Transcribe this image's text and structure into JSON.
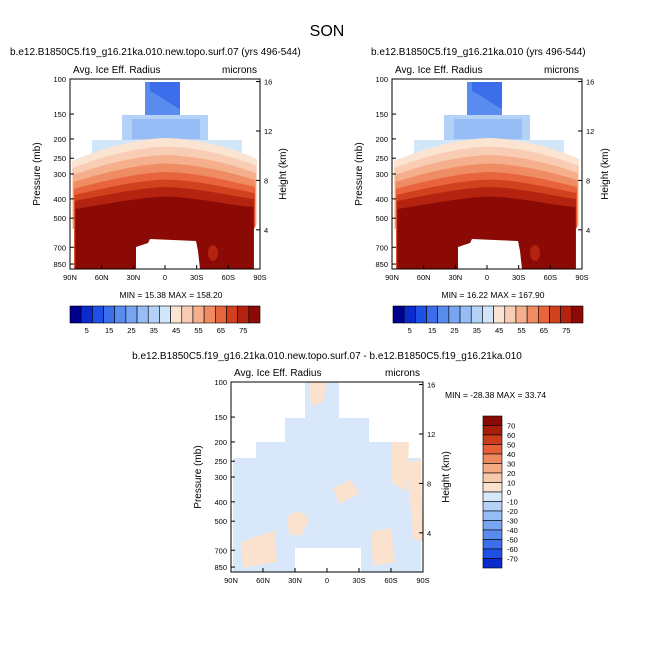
{
  "figure": {
    "title": "SON"
  },
  "colors": {
    "levels_main": [
      "#00008f",
      "#0a2ccc",
      "#1e50e6",
      "#3c6eeb",
      "#5a8cf0",
      "#78a5f2",
      "#96bdf5",
      "#b4d2f8",
      "#d2e6fa",
      "#fbe4d2",
      "#f8cdb4",
      "#f5af8c",
      "#f08c64",
      "#e8643c",
      "#d2411e",
      "#b4230f",
      "#8c0a05"
    ],
    "levels_diff": [
      "#00008f",
      "#0a2ccc",
      "#1e50e6",
      "#3c6eeb",
      "#5a8cf0",
      "#78a5f2",
      "#96bdf5",
      "#b4d2f8",
      "#d8e8fa",
      "#fbe2ce",
      "#f8c8ad",
      "#f5aa86",
      "#ee8860",
      "#e56038",
      "#cc3c1c",
      "#a81e0c",
      "#8c0a05"
    ]
  },
  "chart_data": [
    {
      "id": "panel1",
      "type": "contour",
      "title": "b.e12.B1850C5.f19_g16.21ka.010.new.topo.surf.07 (yrs 496-544)",
      "left_label": "Avg. Ice Eff. Radius",
      "right_label": "microns",
      "ylabel": "Pressure (mb)",
      "y2label": "Height (km)",
      "x_ticks": [
        "90N",
        "60N",
        "30N",
        "0",
        "30S",
        "60S",
        "90S"
      ],
      "y_ticks": [
        "100",
        "150",
        "200",
        "250",
        "300",
        "400",
        "500",
        "700",
        "850"
      ],
      "y2_ticks": [
        "16",
        "12",
        "8",
        "4"
      ],
      "stats": {
        "min_label": "MIN =",
        "min": "15.38",
        "max_label": "MAX =",
        "max": "158.20"
      },
      "colorbar": {
        "labels": [
          "5",
          "15",
          "25",
          "35",
          "45",
          "55",
          "65",
          "75"
        ],
        "levels": [
          5,
          10,
          15,
          20,
          25,
          30,
          35,
          40,
          45,
          50,
          55,
          60,
          65,
          70,
          75
        ]
      }
    },
    {
      "id": "panel2",
      "type": "contour",
      "title": "b.e12.B1850C5.f19_g16.21ka.010 (yrs 496-544)",
      "left_label": "Avg. Ice Eff. Radius",
      "right_label": "microns",
      "ylabel": "Pressure (mb)",
      "y2label": "Height (km)",
      "x_ticks": [
        "90N",
        "60N",
        "30N",
        "0",
        "30S",
        "60S",
        "90S"
      ],
      "y_ticks": [
        "100",
        "150",
        "200",
        "250",
        "300",
        "400",
        "500",
        "700",
        "850"
      ],
      "y2_ticks": [
        "16",
        "12",
        "8",
        "4"
      ],
      "stats": {
        "min_label": "MIN =",
        "min": "16.22",
        "max_label": "MAX =",
        "max": "167.90"
      },
      "colorbar": {
        "labels": [
          "5",
          "15",
          "25",
          "35",
          "45",
          "55",
          "65",
          "75"
        ],
        "levels": [
          5,
          10,
          15,
          20,
          25,
          30,
          35,
          40,
          45,
          50,
          55,
          60,
          65,
          70,
          75
        ]
      }
    },
    {
      "id": "panel3",
      "type": "contour",
      "title": "b.e12.B1850C5.f19_g16.21ka.010.new.topo.surf.07 - b.e12.B1850C5.f19_g16.21ka.010",
      "left_label": "Avg. Ice Eff. Radius",
      "right_label": "microns",
      "ylabel": "Pressure (mb)",
      "y2label": "Height (km)",
      "x_ticks": [
        "90N",
        "60N",
        "30N",
        "0",
        "30S",
        "60S",
        "90S"
      ],
      "y_ticks": [
        "100",
        "150",
        "200",
        "250",
        "300",
        "400",
        "500",
        "700",
        "850"
      ],
      "y2_ticks": [
        "16",
        "12",
        "8",
        "4"
      ],
      "stats": {
        "min_label": "MIN =",
        "min": "-28.38",
        "max_label": "MAX =",
        "max": "33.74"
      },
      "colorbar": {
        "labels": [
          "70",
          "60",
          "50",
          "40",
          "30",
          "20",
          "10",
          "0",
          "-10",
          "-20",
          "-30",
          "-40",
          "-50",
          "-60",
          "-70"
        ]
      }
    }
  ]
}
